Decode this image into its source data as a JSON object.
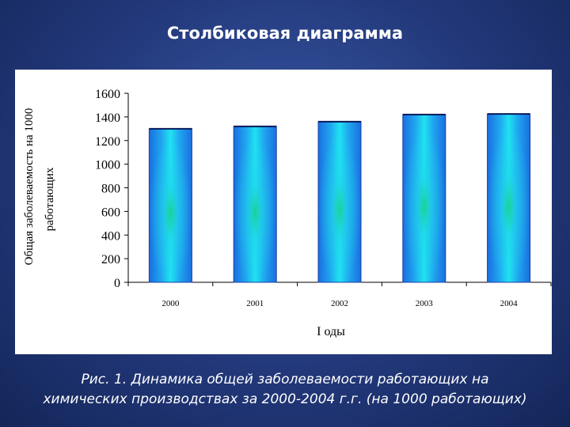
{
  "slide": {
    "title": "Столбиковая диаграмма",
    "caption_line1": "Рис. 1. Динамика общей заболеваемости работающих на",
    "caption_line2": "химических производствах за 2000-2004 г.г. (на 1000 работающих)"
  },
  "colors": {
    "background": "#22387a",
    "bar_edge": "#1a6fe0",
    "bar_center": "#1fe3f0",
    "bar_core": "#19d08a"
  },
  "chart_data": {
    "type": "bar",
    "categories": [
      "2000",
      "2001",
      "2002",
      "2003",
      "2004"
    ],
    "values": [
      1300,
      1320,
      1360,
      1420,
      1425
    ],
    "title": "",
    "xlabel": "I оды",
    "ylabel_line1": "Общая заболеваемость на 1000",
    "ylabel_line2": "работающих",
    "ylim": [
      0,
      1600
    ],
    "yticks": [
      "0",
      "200",
      "400",
      "600",
      "800",
      "1000",
      "1200",
      "1400",
      "1600"
    ],
    "grid": false,
    "legend": "none"
  }
}
